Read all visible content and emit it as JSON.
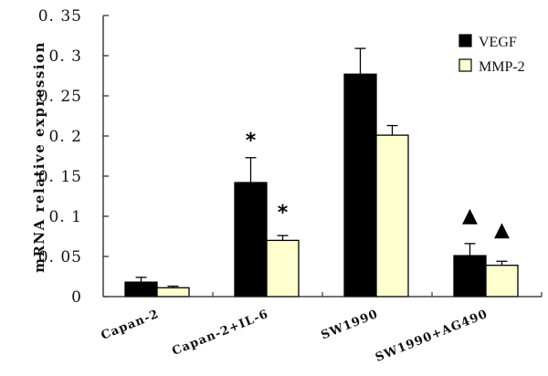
{
  "chart_data": {
    "type": "bar",
    "title": "",
    "xlabel": "",
    "ylabel": "mRNA relative expression",
    "ylim": [
      0,
      0.35
    ],
    "yticks": [
      0,
      0.05,
      0.1,
      0.15,
      0.2,
      0.25,
      0.3,
      0.35
    ],
    "ytick_labels": [
      "0",
      "0. 05",
      "0. 1",
      "0. 15",
      "0. 2",
      "0. 25",
      "0. 3",
      "0. 35"
    ],
    "categories": [
      "Capan-2",
      "Capan-2+IL-6",
      "SW1990",
      "SW1990+AG490"
    ],
    "series": [
      {
        "name": "VEGF",
        "color": "#000000",
        "values": [
          0.018,
          0.142,
          0.277,
          0.051
        ],
        "errors": [
          0.006,
          0.031,
          0.032,
          0.015
        ]
      },
      {
        "name": "MMP-2",
        "color": "#FFFFD0",
        "values": [
          0.011,
          0.07,
          0.201,
          0.039
        ],
        "errors": [
          0.002,
          0.006,
          0.012,
          0.005
        ]
      }
    ],
    "annotations": [
      {
        "category": "Capan-2+IL-6",
        "series": "VEGF",
        "symbol": "*"
      },
      {
        "category": "Capan-2+IL-6",
        "series": "MMP-2",
        "symbol": "*"
      },
      {
        "category": "SW1990+AG490",
        "series": "VEGF",
        "symbol": "▲"
      },
      {
        "category": "SW1990+AG490",
        "series": "MMP-2",
        "symbol": "▲"
      }
    ],
    "legend": {
      "position": "upper right",
      "entries": [
        "VEGF",
        "MMP-2"
      ]
    },
    "grid": false
  }
}
